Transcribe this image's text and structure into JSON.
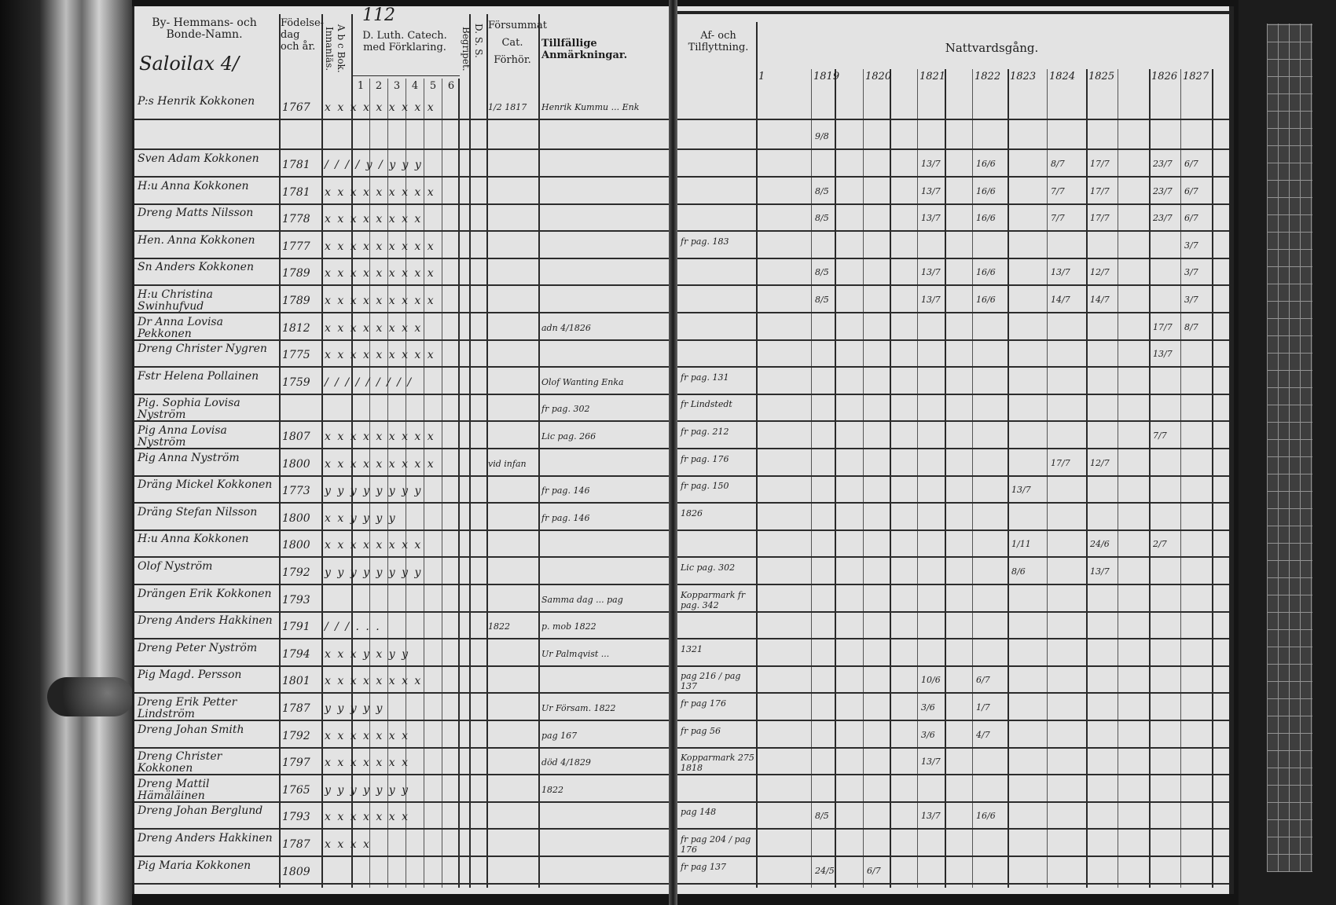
{
  "left_page": {
    "page_number": "112",
    "village_heading": "Saloilax 4/",
    "headers": {
      "name": "By- Hemmans- och Bonde-Namn.",
      "birth": "Födelse-dag och år.",
      "abc": "A b c Bok. Innanläs.",
      "catechism": "D. Luth. Catech. med Förklaring.",
      "catechism_subcols": [
        "1",
        "2",
        "3",
        "4",
        "5",
        "6"
      ],
      "begripet": "Begripet.",
      "dss": "D. S. S.",
      "forsummat": "Försummat Cat. Förhör.",
      "remarks": "Tillfällige Anmärkningar."
    },
    "rows": [
      {
        "name": "P:s Henrik Kokkonen",
        "birth": "1767",
        "marks": "x x x x x x x x x",
        "forsummat": "1/2 1817",
        "remark": "Henrik Kummu ... Enk"
      },
      {
        "name": "",
        "birth": "",
        "marks": "",
        "forsummat": "",
        "remark": ""
      },
      {
        "name": "Sven Adam Kokkonen",
        "birth": "1781",
        "marks": "/ / / / y / y y y",
        "forsummat": "",
        "remark": ""
      },
      {
        "name": "H:u Anna Kokkonen",
        "birth": "1781",
        "marks": "x x x x x x x x x",
        "forsummat": "",
        "remark": ""
      },
      {
        "name": "Dreng Matts Nilsson",
        "birth": "1778",
        "marks": "x x x x x x x x",
        "forsummat": "",
        "remark": ""
      },
      {
        "name": "Hen. Anna Kokkonen",
        "birth": "1777",
        "marks": "x x x x x x x x x",
        "forsummat": "",
        "remark": ""
      },
      {
        "name": "Sn Anders Kokkonen",
        "birth": "1789",
        "marks": "x x x x x x x x x",
        "forsummat": "",
        "remark": ""
      },
      {
        "name": "H:u Christina Swinhufvud",
        "birth": "1789",
        "marks": "x x x x x x x x x",
        "forsummat": "",
        "remark": ""
      },
      {
        "name": "Dr Anna Lovisa Pekkonen",
        "birth": "1812",
        "marks": "x x x x x x x x",
        "forsummat": "",
        "remark": "adn 4/1826"
      },
      {
        "name": "Dreng Christer Nygren",
        "birth": "1775",
        "marks": "x x x x x x x x x",
        "forsummat": "",
        "remark": ""
      },
      {
        "name": "Fstr Helena Pollainen",
        "birth": "1759",
        "marks": "/ / / / / / / / /",
        "forsummat": "",
        "remark": "Olof Wanting Enka"
      },
      {
        "name": "Pig. Sophia Lovisa Nyström",
        "birth": "",
        "marks": "",
        "forsummat": "",
        "remark": "fr pag. 302"
      },
      {
        "name": "Pig Anna Lovisa Nyström",
        "birth": "1807",
        "marks": "x x x x x x x x x",
        "forsummat": "",
        "remark": "Lic pag. 266"
      },
      {
        "name": "Pig Anna Nyström",
        "birth": "1800",
        "marks": "x x x x x x x x x",
        "forsummat": "vid infan",
        "remark": ""
      },
      {
        "name": "Dräng Mickel Kokkonen",
        "birth": "1773",
        "marks": "y y y y y y y y",
        "forsummat": "",
        "remark": "fr pag. 146"
      },
      {
        "name": "Dräng Stefan Nilsson",
        "birth": "1800",
        "marks": "x x y y y y",
        "forsummat": "",
        "remark": "fr pag. 146"
      },
      {
        "name": "H:u Anna Kokkonen",
        "birth": "1800",
        "marks": "x x x x x x x x",
        "forsummat": "",
        "remark": ""
      },
      {
        "name": "Olof Nyström",
        "birth": "1792",
        "marks": "y y y y y y y y",
        "forsummat": "",
        "remark": ""
      },
      {
        "name": "Drängen Erik Kokkonen",
        "birth": "1793",
        "marks": "",
        "forsummat": "",
        "remark": "Samma dag ... pag"
      },
      {
        "name": "Dreng Anders Hakkinen",
        "birth": "1791",
        "marks": "/ / / . . .",
        "forsummat": "1822",
        "remark": "p. mob 1822"
      },
      {
        "name": "Dreng Peter Nyström",
        "birth": "1794",
        "marks": "x x x y x y y",
        "forsummat": "",
        "remark": "Ur Palmqvist ..."
      },
      {
        "name": "Pig Magd. Persson",
        "birth": "1801",
        "marks": "x x x x x x x x",
        "forsummat": "",
        "remark": ""
      },
      {
        "name": "Dreng Erik Petter Lindström",
        "birth": "1787",
        "marks": "y y y y y",
        "forsummat": "",
        "remark": "Ur Försam. 1822"
      },
      {
        "name": "Dreng Johan Smith",
        "birth": "1792",
        "marks": "x x x x x x x",
        "forsummat": "",
        "remark": "pag 167"
      },
      {
        "name": "Dreng Christer Kokkonen",
        "birth": "1797",
        "marks": "x x x x x x x",
        "forsummat": "",
        "remark": "död 4/1829"
      },
      {
        "name": "Dreng Mattil Hämäläinen",
        "birth": "1765",
        "marks": "y y y y y y y",
        "forsummat": "",
        "remark": "1822"
      },
      {
        "name": "Dreng Johan Berglund",
        "birth": "1793",
        "marks": "x x x x x x x",
        "forsummat": "",
        "remark": ""
      },
      {
        "name": "Dreng Anders Hakkinen",
        "birth": "1787",
        "marks": "x x x x",
        "forsummat": "",
        "remark": ""
      },
      {
        "name": "Pig Maria Kokkonen",
        "birth": "1809",
        "marks": "",
        "forsummat": "",
        "remark": ""
      }
    ]
  },
  "right_page": {
    "headers": {
      "moves": "Af- och Tilflyttning.",
      "communion": "Nattvardsgång.",
      "years": [
        "1",
        "1819",
        "1820",
        "1821",
        "1822",
        "1823",
        "1824",
        "1825",
        "1826",
        "1827"
      ]
    },
    "rows": [
      {
        "move": "",
        "communion": [
          "",
          "",
          "",
          "",
          "",
          "",
          "",
          "",
          "",
          ""
        ]
      },
      {
        "move": "",
        "communion": [
          "",
          "9/8",
          "",
          "",
          "",
          "",
          "",
          "",
          "",
          ""
        ]
      },
      {
        "move": "",
        "communion": [
          "",
          "",
          "",
          "13/7",
          "16/6",
          "",
          "8/7",
          "17/7",
          "23/7",
          "6/7"
        ]
      },
      {
        "move": "",
        "communion": [
          "",
          "8/5",
          "",
          "13/7",
          "16/6",
          "",
          "7/7",
          "17/7",
          "23/7",
          "6/7"
        ]
      },
      {
        "move": "",
        "communion": [
          "",
          "8/5",
          "",
          "13/7",
          "16/6",
          "",
          "7/7",
          "17/7",
          "23/7",
          "6/7"
        ]
      },
      {
        "move": "fr pag. 183",
        "communion": [
          "",
          "",
          "",
          "",
          "",
          "",
          "",
          "",
          "",
          "3/7"
        ]
      },
      {
        "move": "",
        "communion": [
          "",
          "8/5",
          "",
          "13/7",
          "16/6",
          "",
          "13/7",
          "12/7",
          "",
          "3/7"
        ]
      },
      {
        "move": "",
        "communion": [
          "",
          "8/5",
          "",
          "13/7",
          "16/6",
          "",
          "14/7",
          "14/7",
          "",
          "3/7"
        ]
      },
      {
        "move": "",
        "communion": [
          "",
          "",
          "",
          "",
          "",
          "",
          "",
          "",
          "17/7",
          "8/7"
        ]
      },
      {
        "move": "",
        "communion": [
          "",
          "",
          "",
          "",
          "",
          "",
          "",
          "",
          "13/7",
          ""
        ]
      },
      {
        "move": "fr pag. 131",
        "communion": [
          "",
          "",
          "",
          "",
          "",
          "",
          "",
          "",
          "",
          ""
        ]
      },
      {
        "move": "fr Lindstedt",
        "communion": [
          "",
          "",
          "",
          "",
          "",
          "",
          "",
          "",
          "",
          ""
        ]
      },
      {
        "move": "fr pag. 212",
        "communion": [
          "",
          "",
          "",
          "",
          "",
          "",
          "",
          "",
          "7/7",
          ""
        ]
      },
      {
        "move": "fr pag. 176",
        "communion": [
          "",
          "",
          "",
          "",
          "",
          "",
          "17/7",
          "12/7",
          "",
          ""
        ]
      },
      {
        "move": "fr pag. 150",
        "communion": [
          "",
          "",
          "",
          "",
          "",
          "13/7",
          "",
          "",
          "",
          ""
        ]
      },
      {
        "move": "1826",
        "communion": [
          "",
          "",
          "",
          "",
          "",
          "",
          "",
          "",
          "",
          ""
        ]
      },
      {
        "move": "",
        "communion": [
          "",
          "",
          "",
          "",
          "",
          "1/11",
          "",
          "24/6",
          "2/7",
          ""
        ]
      },
      {
        "move": "Lic pag. 302",
        "communion": [
          "",
          "",
          "",
          "",
          "",
          "8/6",
          "",
          "13/7",
          "",
          ""
        ]
      },
      {
        "move": "Kopparmark fr pag. 342",
        "communion": [
          "",
          "",
          "",
          "",
          "",
          "",
          "",
          "",
          "",
          ""
        ]
      },
      {
        "move": "",
        "communion": [
          "",
          "",
          "",
          "",
          "",
          "",
          "",
          "",
          "",
          ""
        ]
      },
      {
        "move": "1321",
        "communion": [
          "",
          "",
          "",
          "",
          "",
          "",
          "",
          "",
          "",
          ""
        ]
      },
      {
        "move": "pag 216 / pag 137",
        "communion": [
          "",
          "",
          "",
          "10/6",
          "6/7",
          "",
          "",
          "",
          "",
          ""
        ]
      },
      {
        "move": "fr pag 176",
        "communion": [
          "",
          "",
          "",
          "3/6",
          "1/7",
          "",
          "",
          "",
          "",
          ""
        ]
      },
      {
        "move": "fr pag 56",
        "communion": [
          "",
          "",
          "",
          "3/6",
          "4/7",
          "",
          "",
          "",
          "",
          ""
        ]
      },
      {
        "move": "Kopparmark 275 1818",
        "communion": [
          "",
          "",
          "",
          "13/7",
          "",
          "",
          "",
          "",
          "",
          ""
        ]
      },
      {
        "move": "",
        "communion": [
          "",
          "",
          "",
          "",
          "",
          "",
          "",
          "",
          "",
          ""
        ]
      },
      {
        "move": "pag 148",
        "communion": [
          "",
          "8/5",
          "",
          "13/7",
          "16/6",
          "",
          "",
          "",
          "",
          ""
        ]
      },
      {
        "move": "fr pag 204 / pag 176",
        "communion": [
          "",
          "",
          "",
          "",
          "",
          "",
          "",
          "",
          "",
          ""
        ]
      },
      {
        "move": "fr pag 137",
        "communion": [
          "",
          "24/5",
          "6/7",
          "",
          "",
          "",
          "",
          "",
          "",
          ""
        ]
      }
    ]
  }
}
